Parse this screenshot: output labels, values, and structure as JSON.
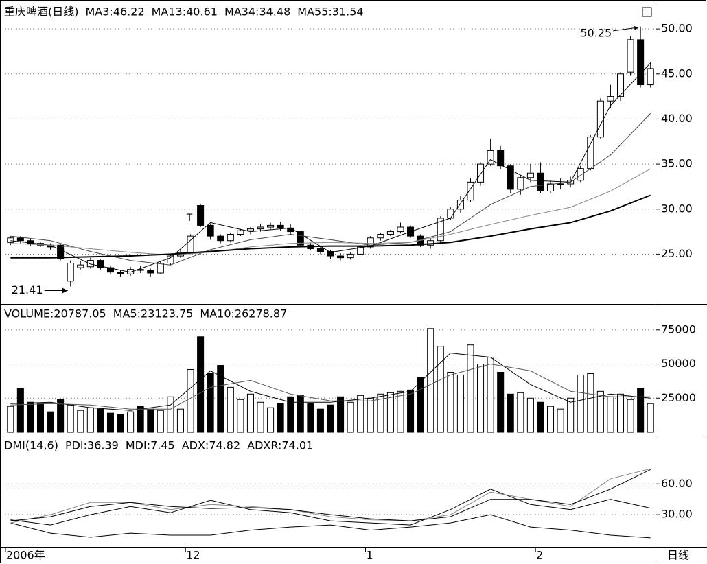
{
  "chart_data": [
    {
      "type": "candlestick",
      "title": "重庆啤酒(日线)",
      "period_label": "日线",
      "categories": [
        "2006年",
        null,
        null,
        null,
        null,
        null,
        null,
        null,
        null,
        null,
        null,
        null,
        null,
        null,
        null,
        null,
        null,
        null,
        "12",
        null,
        null,
        null,
        null,
        null,
        null,
        null,
        null,
        null,
        null,
        null,
        null,
        null,
        null,
        null,
        null,
        null,
        "1",
        null,
        null,
        null,
        null,
        null,
        null,
        null,
        null,
        null,
        null,
        null,
        null,
        null,
        null,
        null,
        null,
        "2",
        null,
        null,
        null,
        null,
        null,
        null,
        null,
        null,
        null,
        null,
        null
      ],
      "open": [
        26.3,
        26.8,
        26.5,
        26.2,
        26.0,
        26.0,
        22.0,
        23.5,
        23.6,
        24.3,
        23.5,
        23.0,
        22.8,
        23.3,
        23.2,
        22.9,
        24.0,
        24.8,
        25.2,
        30.4,
        28.2,
        27.0,
        26.5,
        27.2,
        27.6,
        27.8,
        28.0,
        28.2,
        27.9,
        27.5,
        26.0,
        25.6,
        25.3,
        24.8,
        24.6,
        25.0,
        25.8,
        26.8,
        27.2,
        27.5,
        28.0,
        27.0,
        26.0,
        26.5,
        29.0,
        30.0,
        31.0,
        33.0,
        35.0,
        36.5,
        34.8,
        32.2,
        33.5,
        34.0,
        32.0,
        32.8,
        32.8,
        33.2,
        34.5,
        38.0,
        42.0,
        42.5,
        45.2,
        48.8,
        43.8
      ],
      "high": [
        27.0,
        27.0,
        26.7,
        26.4,
        26.2,
        26.1,
        24.3,
        24.2,
        24.6,
        24.4,
        23.7,
        23.2,
        23.6,
        23.7,
        23.4,
        24.2,
        25.0,
        25.5,
        27.2,
        30.6,
        28.4,
        27.2,
        27.4,
        27.8,
        28.0,
        28.3,
        28.5,
        28.6,
        28.3,
        27.6,
        26.3,
        25.9,
        25.5,
        25.1,
        25.2,
        26.0,
        27.0,
        27.4,
        27.7,
        28.5,
        28.2,
        27.2,
        26.8,
        29.2,
        30.2,
        31.5,
        33.4,
        35.2,
        37.8,
        37.0,
        35.0,
        33.8,
        35.0,
        35.2,
        33.2,
        33.4,
        33.6,
        34.8,
        38.2,
        42.3,
        43.8,
        45.2,
        49.2,
        50.25,
        46.3
      ],
      "low": [
        26.0,
        26.2,
        25.9,
        25.8,
        25.5,
        24.3,
        21.41,
        23.3,
        23.4,
        23.3,
        22.8,
        22.5,
        22.6,
        22.9,
        22.5,
        22.8,
        23.8,
        24.6,
        25.0,
        28.0,
        26.6,
        26.2,
        26.3,
        27.0,
        27.2,
        27.5,
        27.7,
        27.6,
        27.2,
        25.9,
        25.4,
        25.0,
        24.5,
        24.3,
        24.4,
        24.9,
        25.6,
        26.5,
        27.0,
        27.3,
        26.8,
        25.8,
        25.6,
        26.3,
        28.8,
        29.6,
        30.8,
        32.6,
        34.8,
        34.4,
        31.8,
        31.6,
        33.0,
        31.8,
        31.8,
        32.2,
        32.4,
        33.0,
        34.3,
        37.8,
        41.2,
        42.0,
        44.8,
        43.5,
        43.5
      ],
      "close": [
        26.8,
        26.5,
        26.2,
        26.0,
        25.8,
        24.5,
        24.0,
        23.8,
        24.3,
        23.5,
        23.0,
        22.8,
        23.3,
        23.2,
        22.9,
        24.0,
        24.8,
        25.2,
        27.0,
        28.2,
        27.0,
        26.5,
        27.2,
        27.6,
        27.8,
        28.0,
        28.2,
        27.9,
        27.5,
        26.0,
        25.6,
        25.3,
        24.8,
        24.6,
        25.0,
        25.8,
        26.8,
        27.2,
        27.5,
        28.0,
        27.0,
        26.0,
        26.5,
        29.0,
        30.0,
        31.0,
        33.0,
        35.0,
        36.5,
        34.8,
        32.2,
        33.5,
        34.0,
        32.0,
        32.8,
        32.8,
        33.2,
        34.5,
        38.0,
        42.0,
        42.5,
        45.0,
        48.8,
        43.8,
        45.6
      ],
      "up_color": "#ffffff",
      "down_color": "#000000",
      "annotations": [
        "T"
      ],
      "series": [
        {
          "name": "MA3:46.22",
          "color": "#000000",
          "x": [
            0,
            4,
            8,
            12,
            16,
            20,
            24,
            28,
            32,
            36,
            40,
            44,
            48,
            52,
            56,
            60,
            64
          ],
          "values": [
            26.5,
            26.0,
            23.9,
            23.0,
            24.6,
            28.5,
            27.5,
            27.9,
            25.2,
            25.9,
            27.5,
            29.0,
            35.5,
            33.2,
            33.0,
            41.5,
            46.22
          ]
        },
        {
          "name": "MA13:40.61",
          "color": "#444444",
          "x": [
            0,
            4,
            8,
            12,
            16,
            20,
            24,
            28,
            32,
            36,
            40,
            44,
            48,
            52,
            56,
            60,
            64
          ],
          "values": [
            27.0,
            26.5,
            25.3,
            24.3,
            23.8,
            25.5,
            26.6,
            27.2,
            26.6,
            26.0,
            26.3,
            27.5,
            30.5,
            32.5,
            33.0,
            36.0,
            40.61
          ]
        },
        {
          "name": "MA34:34.48",
          "color": "#888888",
          "x": [
            0,
            4,
            8,
            12,
            16,
            20,
            24,
            28,
            32,
            36,
            40,
            44,
            48,
            52,
            56,
            60,
            64
          ],
          "values": [
            26.2,
            26.0,
            25.6,
            25.2,
            24.9,
            25.2,
            25.8,
            26.2,
            26.3,
            26.2,
            26.3,
            27.2,
            28.3,
            29.3,
            30.2,
            32.0,
            34.48
          ]
        },
        {
          "name": "MA55:31.54",
          "color": "#000000",
          "line_width": 2,
          "x": [
            0,
            4,
            8,
            12,
            16,
            20,
            24,
            28,
            32,
            36,
            40,
            44,
            48,
            52,
            56,
            60,
            64
          ],
          "values": [
            24.6,
            24.6,
            24.7,
            24.8,
            25.0,
            25.3,
            25.6,
            25.8,
            25.9,
            25.9,
            26.0,
            26.3,
            27.0,
            27.8,
            28.5,
            29.8,
            31.54
          ]
        }
      ],
      "ylim": [
        19.7,
        52.6
      ],
      "yticks": [
        {
          "value": 25,
          "label": "25.00"
        },
        {
          "value": 30,
          "label": "30.00"
        },
        {
          "value": 35,
          "label": "35.00"
        },
        {
          "value": 40,
          "label": "40.00"
        },
        {
          "value": 45,
          "label": "45.00"
        },
        {
          "value": 50,
          "label": "50.00"
        }
      ],
      "grid": true
    },
    {
      "type": "bar",
      "name": "VOLUME:20787.05",
      "color": "#000000",
      "values": [
        19000,
        32000,
        22000,
        21000,
        15000,
        24000,
        20000,
        16000,
        18000,
        17000,
        14000,
        13000,
        15000,
        19000,
        17000,
        16000,
        26000,
        17000,
        46000,
        70000,
        43000,
        49000,
        33000,
        24000,
        28000,
        22000,
        18000,
        21000,
        26000,
        27000,
        21000,
        17000,
        20000,
        26000,
        22000,
        27000,
        25000,
        28000,
        29000,
        30000,
        31000,
        40000,
        76000,
        63000,
        44000,
        42000,
        64000,
        50000,
        55000,
        44000,
        28000,
        29000,
        25000,
        22000,
        19000,
        17000,
        25000,
        42000,
        43000,
        30000,
        26000,
        28000,
        24000,
        32000,
        21000
      ],
      "series": [
        {
          "name": "MA5:23123.75",
          "color": "#000000",
          "x": [
            0,
            4,
            8,
            12,
            16,
            20,
            24,
            28,
            32,
            36,
            40,
            44,
            48,
            52,
            56,
            60,
            64
          ],
          "values": [
            21000,
            22000,
            18000,
            16000,
            20000,
            45000,
            30000,
            22000,
            22000,
            25000,
            30000,
            58000,
            55000,
            35000,
            22000,
            28000,
            25000
          ]
        },
        {
          "name": "MA10:26278.87",
          "color": "#555555",
          "x": [
            0,
            4,
            8,
            12,
            16,
            20,
            24,
            28,
            32,
            36,
            40,
            44,
            48,
            52,
            56,
            60,
            64
          ],
          "values": [
            20000,
            21000,
            20000,
            17000,
            17000,
            33000,
            38000,
            28000,
            23000,
            23000,
            28000,
            42000,
            50000,
            45000,
            30000,
            26000,
            26000
          ]
        }
      ],
      "ylim": [
        0,
        92000
      ],
      "yticks": [
        25000,
        50000,
        75000
      ],
      "grid": true
    },
    {
      "type": "line",
      "title": "DMI(14,6)",
      "series": [
        {
          "name": "PDI:36.39",
          "color": "#000000",
          "x": [
            0,
            4,
            8,
            12,
            16,
            20,
            24,
            28,
            32,
            36,
            40,
            44,
            48,
            52,
            56,
            60,
            64
          ],
          "values": [
            25,
            20,
            30,
            38,
            32,
            44,
            35,
            32,
            24,
            22,
            20,
            35,
            55,
            40,
            35,
            45,
            36.39
          ]
        },
        {
          "name": "MDI:7.45",
          "color": "#000000",
          "x": [
            0,
            4,
            8,
            12,
            16,
            20,
            24,
            28,
            32,
            36,
            40,
            44,
            48,
            52,
            56,
            60,
            64
          ],
          "values": [
            22,
            12,
            8,
            12,
            10,
            10,
            15,
            18,
            20,
            15,
            18,
            22,
            30,
            18,
            15,
            10,
            7.45
          ]
        },
        {
          "name": "ADX:74.82",
          "color": "#888888",
          "x": [
            0,
            4,
            8,
            12,
            16,
            20,
            24,
            28,
            32,
            36,
            40,
            44,
            48,
            52,
            56,
            60,
            64
          ],
          "values": [
            22,
            30,
            42,
            42,
            35,
            40,
            38,
            35,
            28,
            25,
            24,
            30,
            52,
            45,
            38,
            65,
            74.82
          ]
        },
        {
          "name": "ADXR:74.01",
          "color": "#000000",
          "x": [
            0,
            4,
            8,
            12,
            16,
            20,
            24,
            28,
            32,
            36,
            40,
            44,
            48,
            52,
            56,
            60,
            64
          ],
          "values": [
            24,
            28,
            38,
            42,
            38,
            36,
            37,
            35,
            30,
            26,
            24,
            28,
            45,
            45,
            40,
            55,
            74.01
          ]
        }
      ],
      "ylim": [
        0,
        105
      ],
      "yticks": [
        {
          "value": 30,
          "label": "30.00"
        },
        {
          "value": 60,
          "label": "60.00"
        }
      ],
      "grid": true
    }
  ]
}
